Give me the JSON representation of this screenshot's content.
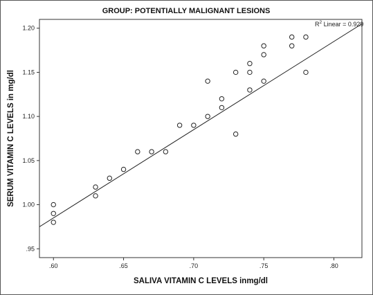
{
  "chart_data": {
    "type": "scatter",
    "title": "GROUP: POTENTIALLY MALIGNANT LESIONS",
    "xlabel": "SALIVA VITAMIN C LEVELS inmg/dl",
    "ylabel": "SERUM VITAMIN C LEVELS in mg/dl",
    "xlim": [
      0.59,
      0.82
    ],
    "ylim": [
      0.94,
      1.21
    ],
    "x_ticks": [
      ".60",
      ".65",
      ".70",
      ".75",
      ".80"
    ],
    "y_ticks": [
      "1.20",
      "1.15",
      "1.10",
      "1.05",
      "1.00",
      ".95"
    ],
    "fit_label": {
      "prefix": "R",
      "sup": "2",
      "suffix": " Linear = 0.929"
    },
    "fit_line": {
      "x": [
        0.59,
        0.82
      ],
      "y": [
        0.975,
        1.205
      ]
    },
    "points": [
      {
        "x": 0.6,
        "y": 1.0
      },
      {
        "x": 0.6,
        "y": 0.99
      },
      {
        "x": 0.6,
        "y": 0.98
      },
      {
        "x": 0.63,
        "y": 1.02
      },
      {
        "x": 0.63,
        "y": 1.01
      },
      {
        "x": 0.64,
        "y": 1.03
      },
      {
        "x": 0.65,
        "y": 1.04
      },
      {
        "x": 0.66,
        "y": 1.06
      },
      {
        "x": 0.67,
        "y": 1.06
      },
      {
        "x": 0.68,
        "y": 1.06
      },
      {
        "x": 0.69,
        "y": 1.09
      },
      {
        "x": 0.7,
        "y": 1.09
      },
      {
        "x": 0.71,
        "y": 1.14
      },
      {
        "x": 0.71,
        "y": 1.1
      },
      {
        "x": 0.72,
        "y": 1.12
      },
      {
        "x": 0.72,
        "y": 1.11
      },
      {
        "x": 0.73,
        "y": 1.15
      },
      {
        "x": 0.73,
        "y": 1.08
      },
      {
        "x": 0.74,
        "y": 1.16
      },
      {
        "x": 0.74,
        "y": 1.15
      },
      {
        "x": 0.74,
        "y": 1.13
      },
      {
        "x": 0.75,
        "y": 1.18
      },
      {
        "x": 0.75,
        "y": 1.17
      },
      {
        "x": 0.75,
        "y": 1.14
      },
      {
        "x": 0.77,
        "y": 1.19
      },
      {
        "x": 0.77,
        "y": 1.18
      },
      {
        "x": 0.78,
        "y": 1.19
      },
      {
        "x": 0.78,
        "y": 1.15
      }
    ],
    "grid": false,
    "legend": "none"
  }
}
